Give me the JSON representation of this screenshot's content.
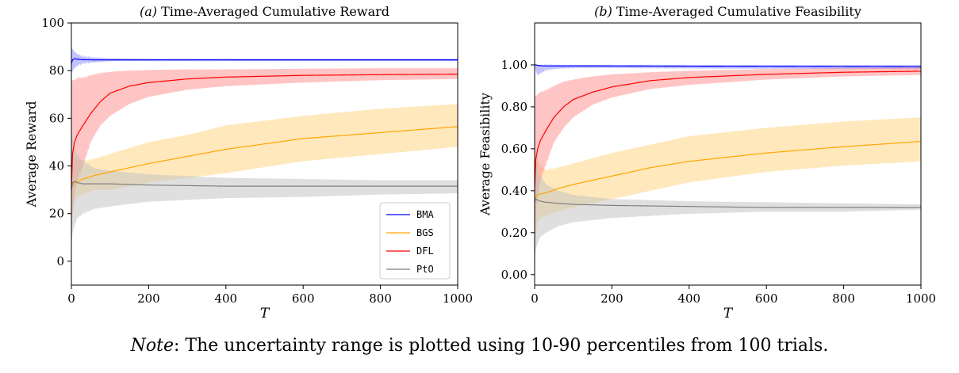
{
  "chart_data": [
    {
      "type": "line",
      "panel": "(a)",
      "title": "Time-Averaged Cumulative Reward",
      "xlabel": "T",
      "ylabel": "Average Reward",
      "xlim": [
        0,
        1000
      ],
      "ylim": [
        -10,
        100
      ],
      "xticks": [
        0,
        200,
        400,
        600,
        800,
        1000
      ],
      "yticks": [
        0,
        20,
        40,
        60,
        80,
        100
      ],
      "ytick_labels": [
        "0",
        "20",
        "40",
        "60",
        "80",
        "100"
      ],
      "legend_position": "lower-right",
      "series": [
        {
          "name": "BMA",
          "color": "#0000ff",
          "band_color": "#8888ff",
          "x": [
            0,
            3,
            8,
            15,
            30,
            60,
            100,
            200,
            400,
            600,
            800,
            1000
          ],
          "mean": [
            83,
            84.5,
            85,
            84.8,
            84.6,
            84.5,
            84.5,
            84.5,
            84.5,
            84.5,
            84.5,
            84.5
          ],
          "p10": [
            78,
            80,
            81,
            82,
            83,
            83.5,
            84,
            84,
            84,
            84,
            84,
            84
          ],
          "p90": [
            90,
            89,
            88,
            87,
            86,
            85.5,
            85.2,
            85,
            85,
            85,
            85,
            85
          ]
        },
        {
          "name": "BGS",
          "color": "#ffa500",
          "band_color": "#ffd27a",
          "x": [
            0,
            3,
            8,
            15,
            30,
            60,
            100,
            200,
            300,
            400,
            600,
            800,
            1000
          ],
          "mean": [
            30,
            32,
            33,
            33.5,
            34.5,
            36,
            37.5,
            41,
            44,
            47,
            51.5,
            54,
            56.5
          ],
          "p10": [
            10,
            20,
            25,
            27,
            28,
            30,
            30,
            33,
            35,
            37,
            42,
            45,
            48
          ],
          "p90": [
            48,
            46,
            44,
            43,
            42,
            43,
            45,
            50,
            53,
            57,
            61,
            64,
            66
          ]
        },
        {
          "name": "DFL",
          "color": "#ff0000",
          "band_color": "#ff8a8a",
          "x": [
            0,
            3,
            8,
            15,
            30,
            50,
            75,
            100,
            150,
            200,
            300,
            400,
            600,
            800,
            1000
          ],
          "mean": [
            30,
            45,
            50,
            53,
            57,
            62,
            67,
            70.5,
            73.5,
            75,
            76.5,
            77.3,
            78,
            78.3,
            78.5
          ],
          "p10": [
            0,
            20,
            28,
            34,
            40,
            50,
            57,
            61,
            66,
            69,
            72,
            73.5,
            75,
            76,
            76.5
          ],
          "p90": [
            76,
            76,
            76,
            77,
            77,
            78,
            79,
            79.5,
            80,
            80.3,
            80.5,
            80.5,
            80.8,
            81,
            81
          ]
        },
        {
          "name": "PtO",
          "color": "#808080",
          "band_color": "#bfbfbf",
          "x": [
            0,
            3,
            8,
            15,
            30,
            60,
            100,
            200,
            400,
            600,
            800,
            1000
          ],
          "mean": [
            30,
            33,
            33.5,
            33,
            32.5,
            32.5,
            32.5,
            32,
            31.5,
            31.5,
            31.5,
            31.5
          ],
          "p10": [
            8,
            12,
            15,
            18,
            20,
            22,
            23,
            25,
            26.5,
            27,
            28,
            28.5
          ],
          "p90": [
            55,
            52,
            48,
            45,
            42,
            39,
            38,
            36.5,
            35,
            34.5,
            34,
            34
          ]
        }
      ]
    },
    {
      "type": "line",
      "panel": "(b)",
      "title": "Time-Averaged Cumulative Feasibility",
      "xlabel": "T",
      "ylabel": "Average Feasibility",
      "xlim": [
        0,
        1000
      ],
      "ylim": [
        -0.05,
        1.2
      ],
      "xticks": [
        0,
        200,
        400,
        600,
        800,
        1000
      ],
      "yticks": [
        0,
        0.2,
        0.4,
        0.6,
        0.8,
        1.0
      ],
      "ytick_labels": [
        "0.00",
        "0.20",
        "0.40",
        "0.60",
        "0.80",
        "1.00"
      ],
      "series": [
        {
          "name": "BMA",
          "color": "#0000ff",
          "band_color": "#8888ff",
          "x": [
            0,
            3,
            8,
            15,
            30,
            60,
            100,
            200,
            400,
            600,
            800,
            1000
          ],
          "mean": [
            1.0,
            1.0,
            0.998,
            0.996,
            0.995,
            0.995,
            0.995,
            0.995,
            0.994,
            0.993,
            0.992,
            0.991
          ],
          "p10": [
            1.0,
            0.97,
            0.95,
            0.96,
            0.975,
            0.982,
            0.985,
            0.985,
            0.983,
            0.982,
            0.981,
            0.98
          ],
          "p90": [
            1.0,
            1.0,
            1.0,
            1.0,
            1.0,
            1.0,
            1.0,
            1.0,
            1.0,
            1.0,
            1.0,
            1.0
          ]
        },
        {
          "name": "BGS",
          "color": "#ffa500",
          "band_color": "#ffd27a",
          "x": [
            0,
            3,
            8,
            15,
            30,
            60,
            100,
            200,
            300,
            400,
            600,
            800,
            1000
          ],
          "mean": [
            0.35,
            0.37,
            0.38,
            0.385,
            0.39,
            0.41,
            0.43,
            0.47,
            0.51,
            0.54,
            0.58,
            0.61,
            0.635
          ],
          "p10": [
            0.1,
            0.2,
            0.25,
            0.27,
            0.28,
            0.3,
            0.32,
            0.36,
            0.4,
            0.44,
            0.49,
            0.52,
            0.54
          ],
          "p90": [
            0.6,
            0.58,
            0.55,
            0.52,
            0.5,
            0.51,
            0.53,
            0.58,
            0.62,
            0.66,
            0.7,
            0.73,
            0.75
          ]
        },
        {
          "name": "DFL",
          "color": "#ff0000",
          "band_color": "#ff8a8a",
          "x": [
            0,
            3,
            8,
            15,
            30,
            50,
            75,
            100,
            150,
            200,
            300,
            400,
            600,
            800,
            1000
          ],
          "mean": [
            0.4,
            0.55,
            0.6,
            0.64,
            0.69,
            0.75,
            0.8,
            0.835,
            0.87,
            0.895,
            0.925,
            0.94,
            0.955,
            0.965,
            0.97
          ],
          "p10": [
            0.0,
            0.3,
            0.38,
            0.45,
            0.53,
            0.63,
            0.7,
            0.75,
            0.81,
            0.845,
            0.885,
            0.905,
            0.93,
            0.945,
            0.952
          ],
          "p90": [
            0.85,
            0.85,
            0.86,
            0.87,
            0.88,
            0.9,
            0.92,
            0.93,
            0.945,
            0.955,
            0.965,
            0.972,
            0.98,
            0.985,
            0.988
          ]
        },
        {
          "name": "PtO",
          "color": "#808080",
          "band_color": "#bfbfbf",
          "x": [
            0,
            3,
            8,
            15,
            30,
            60,
            100,
            200,
            400,
            600,
            800,
            1000
          ],
          "mean": [
            0.35,
            0.36,
            0.355,
            0.35,
            0.345,
            0.34,
            0.335,
            0.33,
            0.325,
            0.32,
            0.32,
            0.32
          ],
          "p10": [
            0.05,
            0.12,
            0.15,
            0.18,
            0.2,
            0.23,
            0.25,
            0.27,
            0.29,
            0.3,
            0.3,
            0.31
          ],
          "p90": [
            0.6,
            0.55,
            0.5,
            0.47,
            0.43,
            0.4,
            0.38,
            0.36,
            0.35,
            0.345,
            0.34,
            0.335
          ]
        }
      ]
    }
  ],
  "note": {
    "label": "Note",
    "text": ": The uncertainty range is plotted using 10-90 percentiles from 100 trials."
  }
}
